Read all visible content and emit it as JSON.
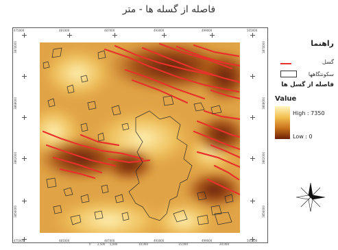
{
  "title": "فاصله از گسله ها - متر",
  "legend": {
    "heading": "راهنما",
    "fault_label": "گسل",
    "settlement_label": "سکونتگاهها",
    "distance_title": "فاصله از گسل ها",
    "value_label": "Value",
    "high_label": "High : 7350",
    "low_label": "Low : 0",
    "fault_color": "#e8312a"
  },
  "grid_labels": {
    "top": [
      "475000",
      "481000",
      "487000",
      "493000",
      "499000",
      "505000"
    ],
    "left": [
      "3874000",
      "3868000",
      "3862000",
      "3856000"
    ],
    "right": [
      "3874000",
      "3868000",
      "3862000",
      "3856000"
    ],
    "bottom": [
      "475000",
      "481000",
      "487000",
      "493000",
      "499000",
      "505000"
    ]
  },
  "scale_labels": [
    "0",
    "2,500",
    "5,000",
    "10,000",
    "15,000",
    "20,000"
  ],
  "north_icon": "north-arrow-compass"
}
